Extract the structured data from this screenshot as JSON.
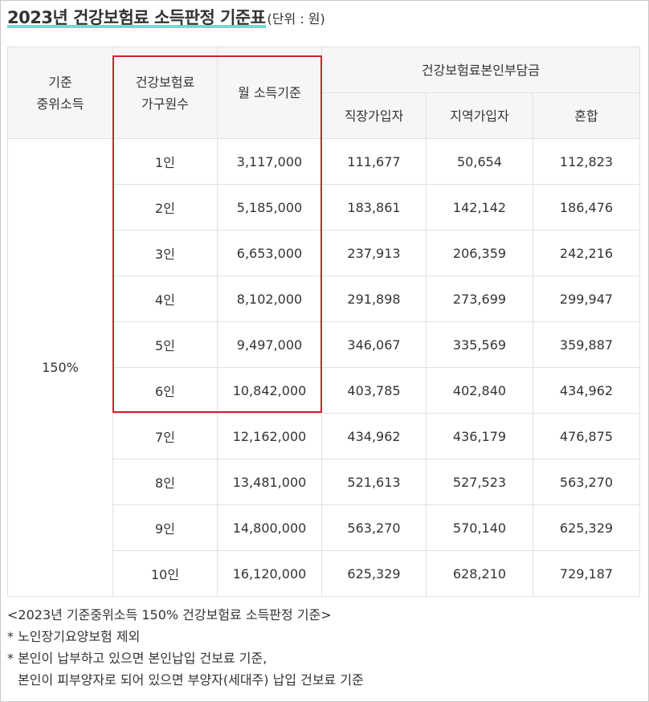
{
  "title": {
    "main": "2023년 건강보험료 소득판정 기준표",
    "unit": "(단위 : 원)"
  },
  "table": {
    "headers": {
      "median_income": [
        "기준",
        "중위소득"
      ],
      "household": [
        "건강보험료",
        "가구원수"
      ],
      "monthly_income": "월 소득기준",
      "contribution_group": "건강보험료본인부담금",
      "employee": "직장가입자",
      "regional": "지역가입자",
      "mixed": "혼합"
    },
    "rate": "150%",
    "rows": [
      {
        "members": "1인",
        "income": "3,117,000",
        "employee": "111,677",
        "regional": "50,654",
        "mixed": "112,823"
      },
      {
        "members": "2인",
        "income": "5,185,000",
        "employee": "183,861",
        "regional": "142,142",
        "mixed": "186,476"
      },
      {
        "members": "3인",
        "income": "6,653,000",
        "employee": "237,913",
        "regional": "206,359",
        "mixed": "242,216"
      },
      {
        "members": "4인",
        "income": "8,102,000",
        "employee": "291,898",
        "regional": "273,699",
        "mixed": "299,947"
      },
      {
        "members": "5인",
        "income": "9,497,000",
        "employee": "346,067",
        "regional": "335,569",
        "mixed": "359,887"
      },
      {
        "members": "6인",
        "income": "10,842,000",
        "employee": "403,785",
        "regional": "402,840",
        "mixed": "434,962"
      },
      {
        "members": "7인",
        "income": "12,162,000",
        "employee": "434,962",
        "regional": "436,179",
        "mixed": "476,875"
      },
      {
        "members": "8인",
        "income": "13,481,000",
        "employee": "521,613",
        "regional": "527,523",
        "mixed": "563,270"
      },
      {
        "members": "9인",
        "income": "14,800,000",
        "employee": "563,270",
        "regional": "570,140",
        "mixed": "625,329"
      },
      {
        "members": "10인",
        "income": "16,120,000",
        "employee": "625,329",
        "regional": "628,210",
        "mixed": "729,187"
      }
    ]
  },
  "notes": [
    "<2023년 기준중위소득 150% 건강보험료 소득판정 기준>",
    "* 노인장기요양보험 제외",
    "* 본인이 납부하고 있으면 본인납입 건보료 기준,",
    "본인이 피부양자로 되어 있으면 부양자(세대주) 납입 건보료 기준"
  ],
  "colors": {
    "highlight_box": "#d41f2d",
    "title_underline": "#62e3d2",
    "header_bg": "#f6f6f6",
    "border": "#e1e1e1"
  }
}
